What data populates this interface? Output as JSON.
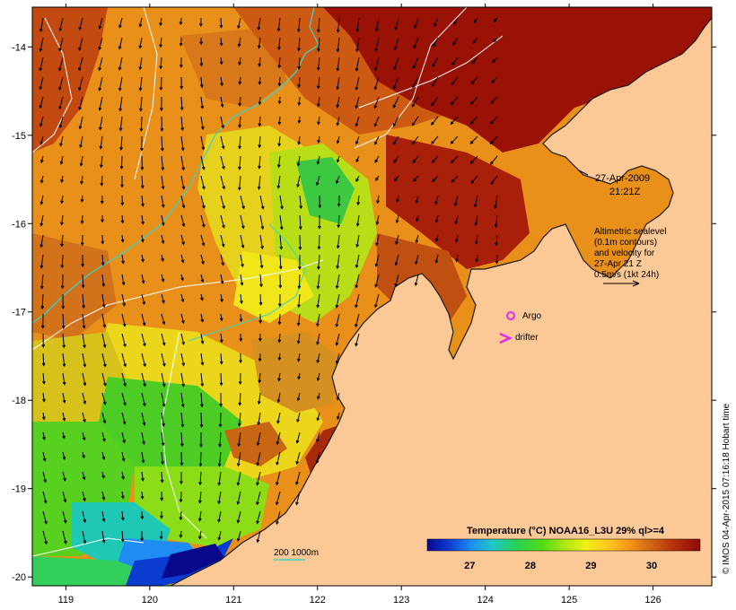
{
  "map": {
    "lon_ticks": [
      "119",
      "120",
      "121",
      "122",
      "123",
      "124",
      "125",
      "126"
    ],
    "lat_ticks": [
      "-14",
      "-15",
      "-16",
      "-17",
      "-18",
      "-19",
      "-20"
    ],
    "lon_range": [
      118.6,
      126.7
    ],
    "lat_range": [
      -20.1,
      -13.55
    ]
  },
  "annotations": {
    "date": "27-Apr-2009",
    "time": "21:21Z",
    "altimetry_lines": [
      "Altimetric sealevel",
      "(0.1m contours)",
      "and velocity for",
      "27-Apr 21 Z",
      "0.5m/s (1kt 24h)"
    ],
    "argo_label": "Argo",
    "drifter_label": "drifter",
    "depth_legend": "200  1000m"
  },
  "colorbar": {
    "title": "Temperature (°C) NOAA16_L3U 29% ql>=4",
    "ticks": [
      "27",
      "28",
      "29",
      "30"
    ],
    "tick_values": [
      27,
      28,
      29,
      30
    ],
    "range": [
      26.3,
      30.8
    ],
    "stops": [
      "#08088c",
      "#0a3cd2",
      "#1e8cf0",
      "#1ec8c8",
      "#28d250",
      "#50dc14",
      "#b4e614",
      "#f0f014",
      "#ffc81e",
      "#f59614",
      "#d26414",
      "#b42d0a",
      "#8c0a05"
    ]
  },
  "footer": {
    "credit": "© IMOS 04-Apr-2015 07:16:18 Hobart time"
  },
  "colors": {
    "land": "#fcc896",
    "bathymetry_200m": "#3cd2c8",
    "contour": "#ffffff",
    "argo_marker": "#e628e6",
    "drifter_marker": "#e628e6"
  }
}
